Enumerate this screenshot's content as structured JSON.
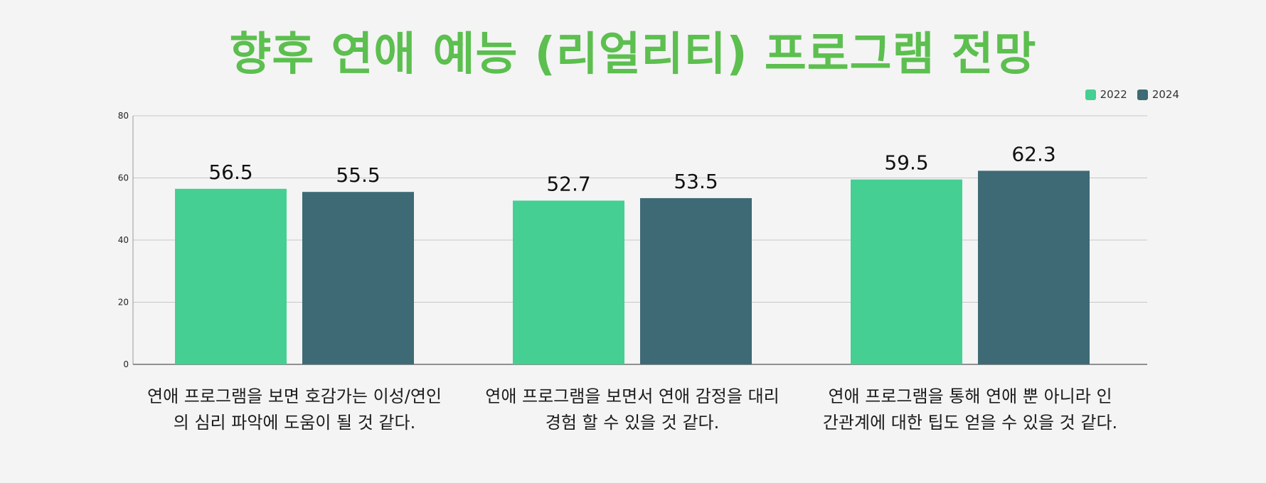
{
  "chart_data": {
    "type": "bar",
    "title": "향후 연애 예능 (리얼리티) 프로그램 전망",
    "categories": [
      "연애 프로그램을 보면 호감가는 이성/연인의 심리 파악에 도움이 될 것 같다.",
      "연애 프로그램을 보면서 연애 감정을 대리경험 할 수 있을 것 같다.",
      "연애 프로그램을 통해 연애 뿐 아니라 인간관계에 대한 팁도 얻을 수 있을 것 같다."
    ],
    "series": [
      {
        "name": "2022",
        "color": "#45cf92",
        "values": [
          56.5,
          52.7,
          59.5
        ]
      },
      {
        "name": "2024",
        "color": "#3d6a75",
        "values": [
          55.5,
          53.5,
          62.3
        ]
      }
    ],
    "yticks": [
      "0",
      "20",
      "40",
      "60",
      "80"
    ],
    "ylim": [
      0,
      80
    ],
    "grid": true,
    "legend": "top-right",
    "title_color": "#5cbf4f"
  }
}
